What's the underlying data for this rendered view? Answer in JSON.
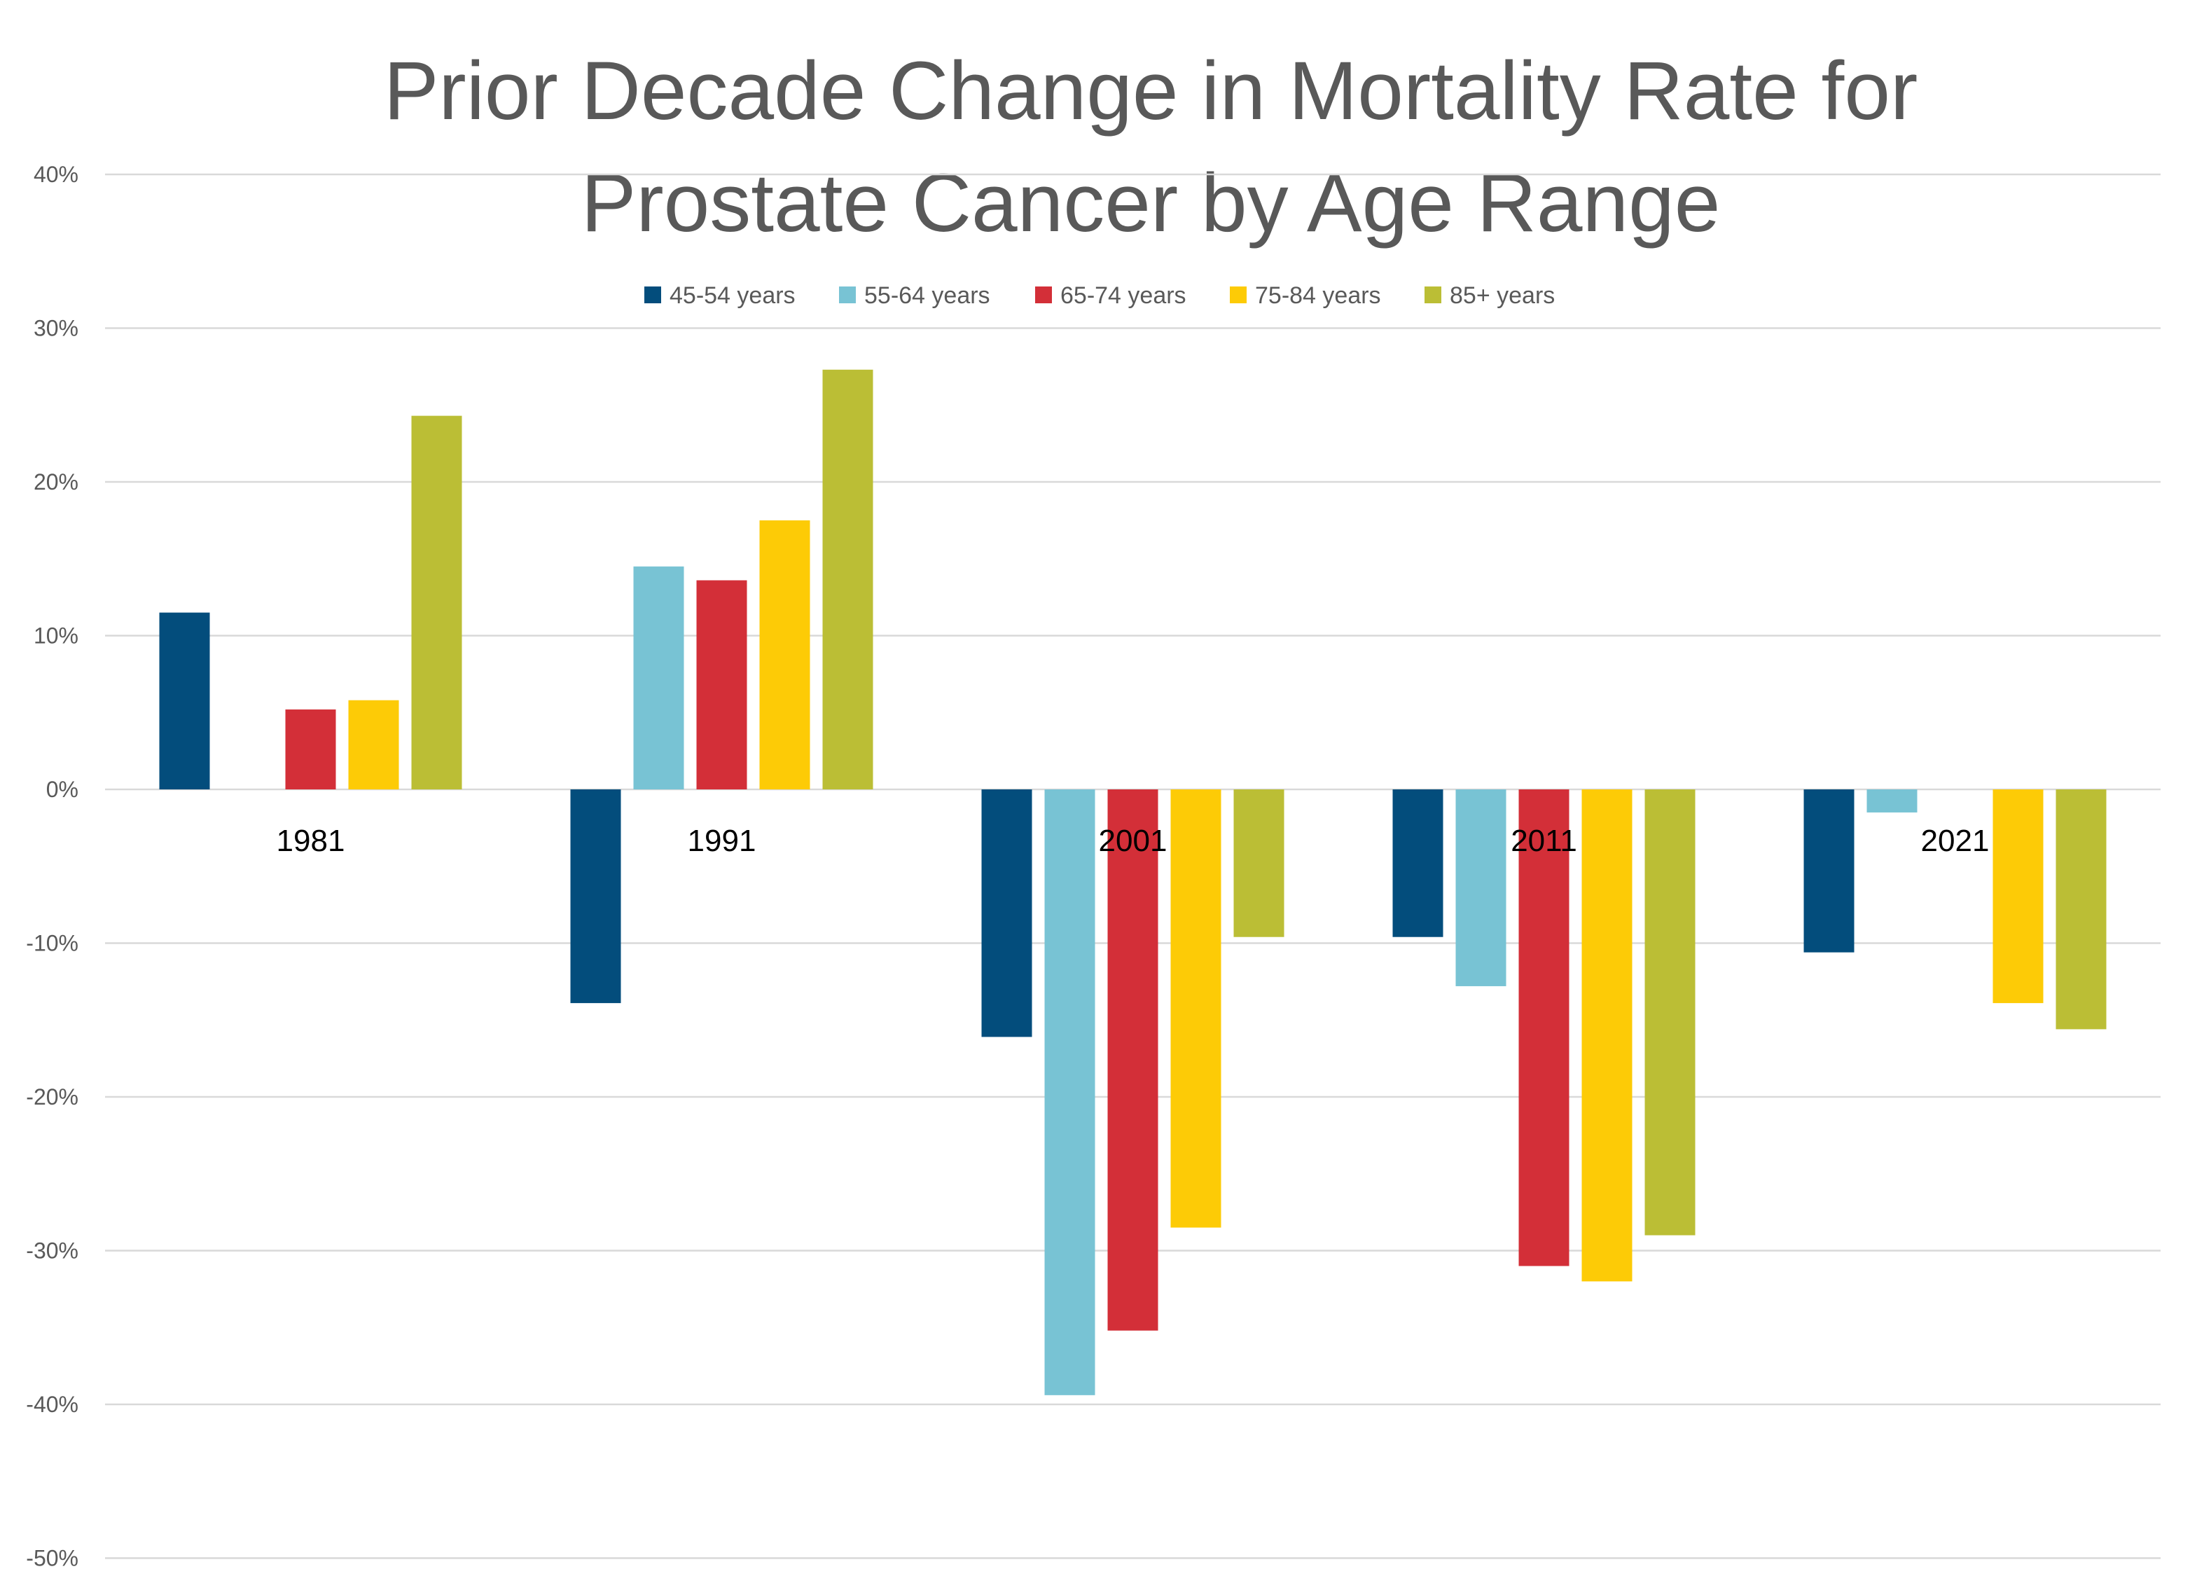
{
  "chart_data": {
    "type": "bar",
    "title_lines": [
      "Prior Decade Change in Mortality Rate for",
      "Prostate Cancer by Age Range"
    ],
    "xlabel": "",
    "ylabel": "",
    "categories": [
      "1981",
      "1991",
      "2001",
      "2011",
      "2021"
    ],
    "ylim": [
      -50,
      40
    ],
    "yticks": [
      40,
      30,
      20,
      10,
      0,
      -10,
      -20,
      -30,
      -40,
      -50
    ],
    "ytick_labels": [
      "40%",
      "30%",
      "20%",
      "10%",
      "0%",
      "-10%",
      "-20%",
      "-30%",
      "-40%",
      "-50%"
    ],
    "grid": true,
    "legend_position": "top",
    "series": [
      {
        "name": "45-54 years",
        "color": "#034D7C",
        "values": [
          11.5,
          -13.9,
          -16.1,
          -9.6,
          -10.6
        ]
      },
      {
        "name": "55-64 years",
        "color": "#78C3D4",
        "values": [
          0,
          14.5,
          -39.4,
          -12.8,
          -1.5
        ]
      },
      {
        "name": "65-74 years",
        "color": "#D32F38",
        "values": [
          5.2,
          13.6,
          -35.2,
          -31.0,
          0
        ]
      },
      {
        "name": "75-84 years",
        "color": "#FDCB06",
        "values": [
          5.8,
          17.5,
          -28.5,
          -32.0,
          -13.9
        ]
      },
      {
        "name": "85+ years",
        "color": "#BBBE35",
        "values": [
          24.3,
          27.3,
          -9.6,
          -29.0,
          -15.6
        ]
      }
    ]
  }
}
